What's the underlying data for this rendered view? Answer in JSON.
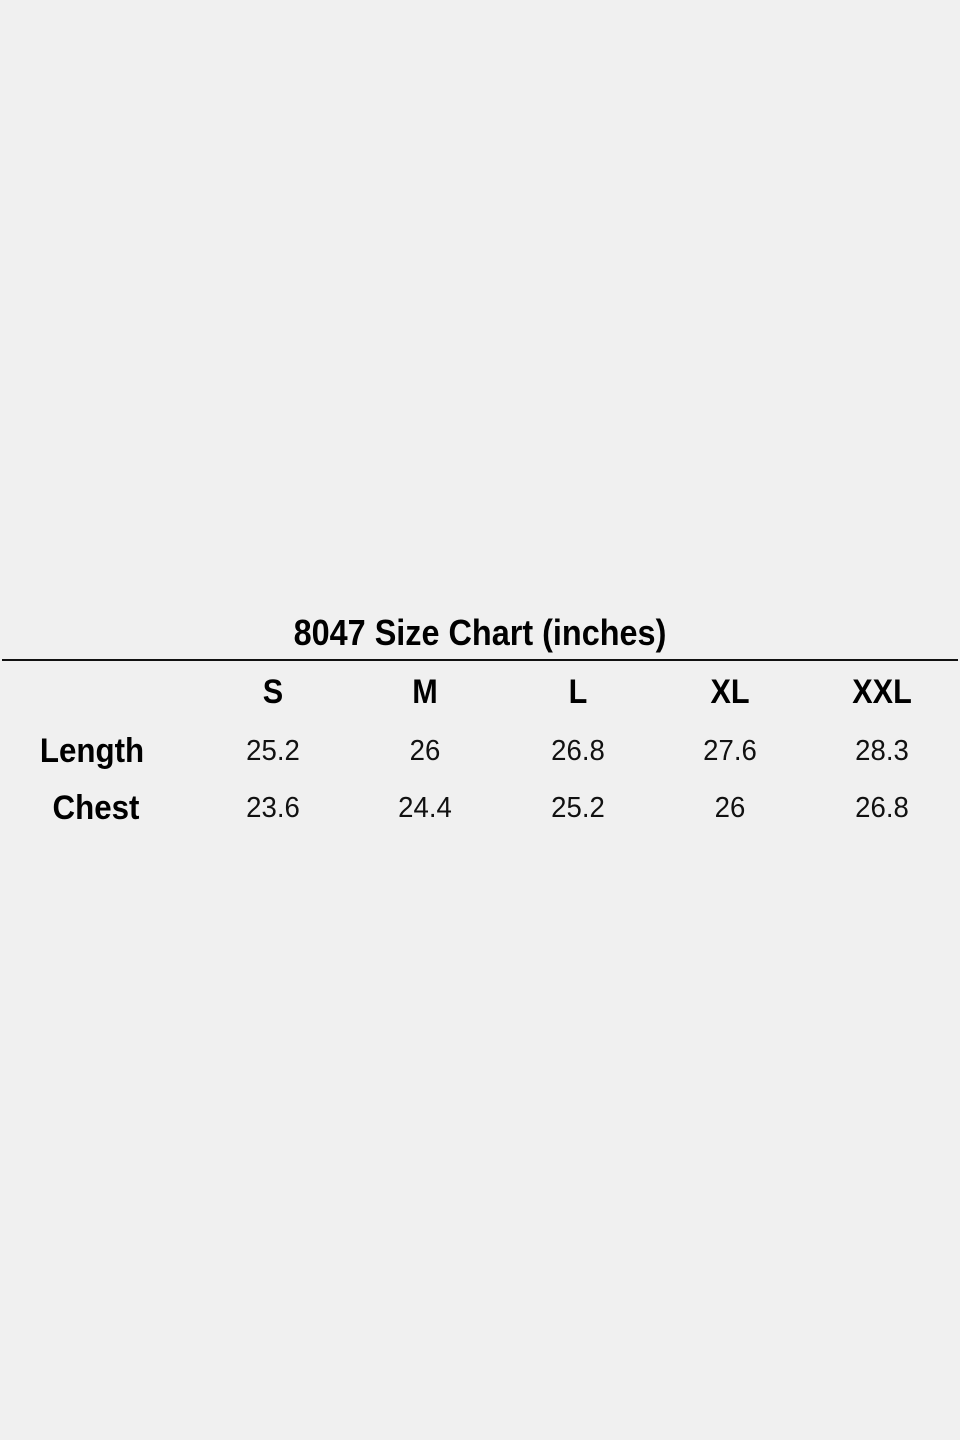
{
  "chart_data": {
    "type": "table",
    "title": "8047 Size Chart (inches)",
    "columns": [
      "S",
      "M",
      "L",
      "XL",
      "XXL"
    ],
    "rows": [
      {
        "label": "Length",
        "values": [
          "25.2",
          "26",
          "26.8",
          "27.6",
          "28.3"
        ]
      },
      {
        "label": "Chest",
        "values": [
          "23.6",
          "24.4",
          "25.2",
          "26",
          "26.8"
        ]
      }
    ]
  },
  "colors": {
    "background": "#f0f0f0",
    "text": "#000000"
  }
}
